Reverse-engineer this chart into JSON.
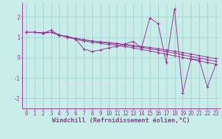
{
  "bg_color": "#c8ece8",
  "line_color": "#993399",
  "grid_color": "#99cccc",
  "xlabel": "Windchill (Refroidissement éolien,°C)",
  "xlabel_fontsize": 6.5,
  "tick_fontsize": 5.5,
  "xlim": [
    -0.5,
    23.5
  ],
  "ylim": [
    -2.5,
    2.7
  ],
  "yticks": [
    -2,
    -1,
    0,
    1,
    2
  ],
  "xticks": [
    0,
    1,
    2,
    3,
    4,
    5,
    6,
    7,
    8,
    9,
    10,
    11,
    12,
    13,
    14,
    15,
    16,
    17,
    18,
    19,
    20,
    21,
    22,
    23
  ],
  "series1_x": [
    0,
    1,
    2,
    3,
    4,
    5,
    6,
    7,
    8,
    9,
    10,
    11,
    12,
    13,
    14,
    15,
    16,
    17,
    18,
    19,
    20,
    21,
    22,
    23
  ],
  "series1_y": [
    1.25,
    1.25,
    1.2,
    1.35,
    1.1,
    1.05,
    0.92,
    0.42,
    0.3,
    0.38,
    0.48,
    0.55,
    0.68,
    0.8,
    0.48,
    1.95,
    1.68,
    -0.25,
    2.4,
    -1.75,
    -0.05,
    -0.12,
    -1.45,
    -0.35
  ],
  "series2_x": [
    0,
    1,
    2,
    3,
    4,
    5,
    6,
    7,
    8,
    9,
    10,
    11,
    12,
    13,
    14,
    15,
    16,
    17,
    18,
    19,
    20,
    21,
    22,
    23
  ],
  "series2_y": [
    1.25,
    1.25,
    1.22,
    1.25,
    1.12,
    1.02,
    0.95,
    0.88,
    0.82,
    0.78,
    0.74,
    0.7,
    0.65,
    0.6,
    0.55,
    0.5,
    0.44,
    0.38,
    0.32,
    0.25,
    0.18,
    0.1,
    0.02,
    -0.05
  ],
  "series3_x": [
    0,
    1,
    2,
    3,
    4,
    5,
    6,
    7,
    8,
    9,
    10,
    11,
    12,
    13,
    14,
    15,
    16,
    17,
    18,
    19,
    20,
    21,
    22,
    23
  ],
  "series3_y": [
    1.25,
    1.25,
    1.22,
    1.25,
    1.12,
    1.02,
    0.95,
    0.88,
    0.82,
    0.76,
    0.72,
    0.67,
    0.62,
    0.56,
    0.5,
    0.44,
    0.37,
    0.3,
    0.22,
    0.14,
    0.06,
    -0.02,
    -0.1,
    -0.18
  ],
  "series4_x": [
    0,
    1,
    2,
    3,
    4,
    5,
    6,
    7,
    8,
    9,
    10,
    11,
    12,
    13,
    14,
    15,
    16,
    17,
    18,
    19,
    20,
    21,
    22,
    23
  ],
  "series4_y": [
    1.25,
    1.25,
    1.2,
    1.25,
    1.1,
    1.0,
    0.9,
    0.82,
    0.76,
    0.7,
    0.65,
    0.6,
    0.54,
    0.48,
    0.4,
    0.33,
    0.25,
    0.17,
    0.09,
    0.01,
    -0.08,
    -0.16,
    -0.24,
    -0.32
  ]
}
